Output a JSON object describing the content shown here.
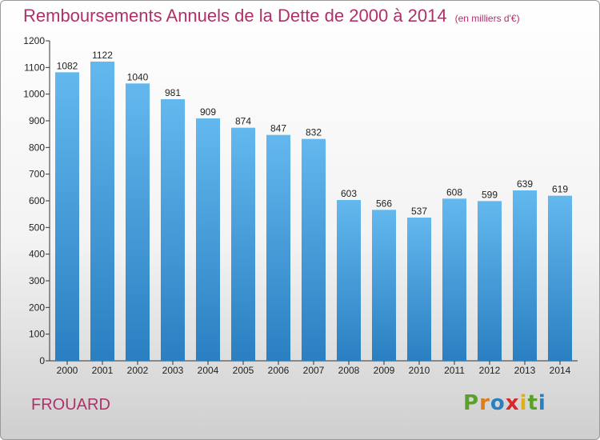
{
  "header": {
    "title": "Remboursements Annuels de la Dette de 2000 à 2014",
    "unit": "(en milliers d'€)"
  },
  "footer": {
    "city": "FROUARD",
    "logo_letters": [
      "P",
      "r",
      "o",
      "x",
      "i",
      "t",
      "i"
    ]
  },
  "colors": {
    "title": "#b0306a",
    "bar_top": "#63b8ee",
    "bar_bottom": "#2a7fc1",
    "logo": [
      "#5aa02c",
      "#e07b18",
      "#2a7fc1",
      "#d8282a",
      "#e0b018",
      "#5aa02c",
      "#2a7fc1"
    ]
  },
  "chart_data": {
    "type": "bar",
    "title": "Remboursements Annuels de la Dette de 2000 à 2014",
    "xlabel": "",
    "ylabel": "",
    "categories": [
      "2000",
      "2001",
      "2002",
      "2003",
      "2004",
      "2005",
      "2006",
      "2007",
      "2008",
      "2009",
      "2010",
      "2011",
      "2012",
      "2013",
      "2014"
    ],
    "values": [
      1082,
      1122,
      1040,
      981,
      909,
      874,
      847,
      832,
      603,
      566,
      537,
      608,
      599,
      639,
      619
    ],
    "ylim": [
      0,
      1200
    ],
    "yticks": [
      0,
      100,
      200,
      300,
      400,
      500,
      600,
      700,
      800,
      900,
      1000,
      1100,
      1200
    ],
    "grid": false,
    "legend": "none"
  }
}
